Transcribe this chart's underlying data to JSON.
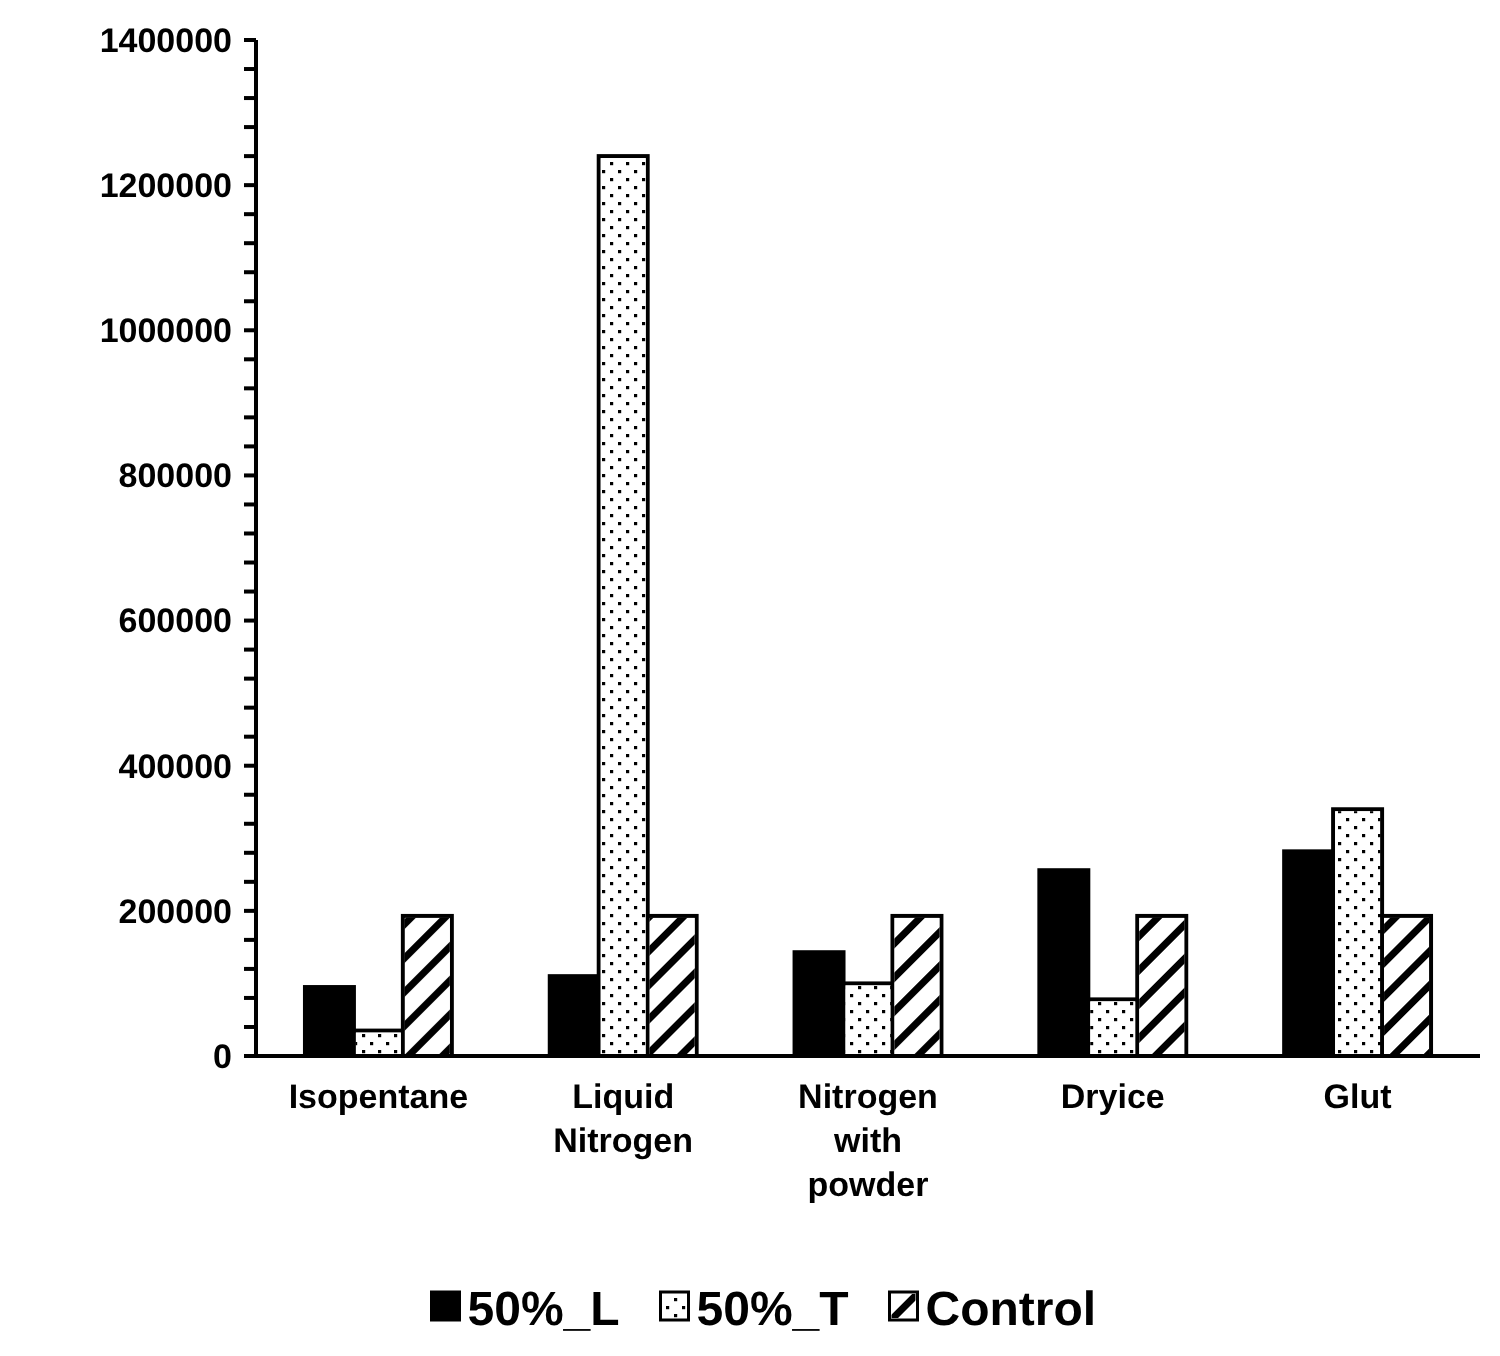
{
  "chart_data": {
    "type": "bar",
    "categories": [
      "Isopentane",
      "Liquid Nitrogen",
      "Nitrogen with powder",
      "Dryice",
      "Glut"
    ],
    "series": [
      {
        "name": "50%_L",
        "color": "#000000",
        "values": [
          95000,
          110000,
          143000,
          256000,
          282000
        ]
      },
      {
        "name": "50%_T",
        "color": "#ffffff",
        "values": [
          35000,
          1240000,
          100000,
          78000,
          340000
        ]
      },
      {
        "name": "Control",
        "color": "#ffffff",
        "values": [
          193000,
          193000,
          193000,
          193000,
          193000
        ]
      }
    ],
    "ylim": [
      0,
      1400000
    ],
    "yticks": [
      0,
      {
        "value": 40000,
        "label": null
      },
      {
        "value": 80000,
        "label": null
      },
      {
        "value": 120000,
        "label": null
      },
      {
        "value": 160000,
        "label": null
      },
      200000,
      {
        "value": 240000,
        "label": null
      },
      {
        "value": 280000,
        "label": null
      },
      {
        "value": 320000,
        "label": null
      },
      {
        "value": 360000,
        "label": null
      },
      400000,
      {
        "value": 440000,
        "label": null
      },
      {
        "value": 480000,
        "label": null
      },
      {
        "value": 520000,
        "label": null
      },
      {
        "value": 560000,
        "label": null
      },
      600000,
      {
        "value": 640000,
        "label": null
      },
      {
        "value": 680000,
        "label": null
      },
      {
        "value": 720000,
        "label": null
      },
      {
        "value": 760000,
        "label": null
      },
      800000,
      {
        "value": 840000,
        "label": null
      },
      {
        "value": 880000,
        "label": null
      },
      {
        "value": 920000,
        "label": null
      },
      {
        "value": 960000,
        "label": null
      },
      1000000,
      {
        "value": 1040000,
        "label": null
      },
      {
        "value": 1080000,
        "label": null
      },
      {
        "value": 1120000,
        "label": null
      },
      {
        "value": 1160000,
        "label": null
      },
      1200000,
      {
        "value": 1240000,
        "label": null
      },
      {
        "value": 1280000,
        "label": null
      },
      {
        "value": 1320000,
        "label": null
      },
      {
        "value": 1360000,
        "label": null
      },
      1400000
    ],
    "grid": false,
    "legend": "bottom"
  }
}
